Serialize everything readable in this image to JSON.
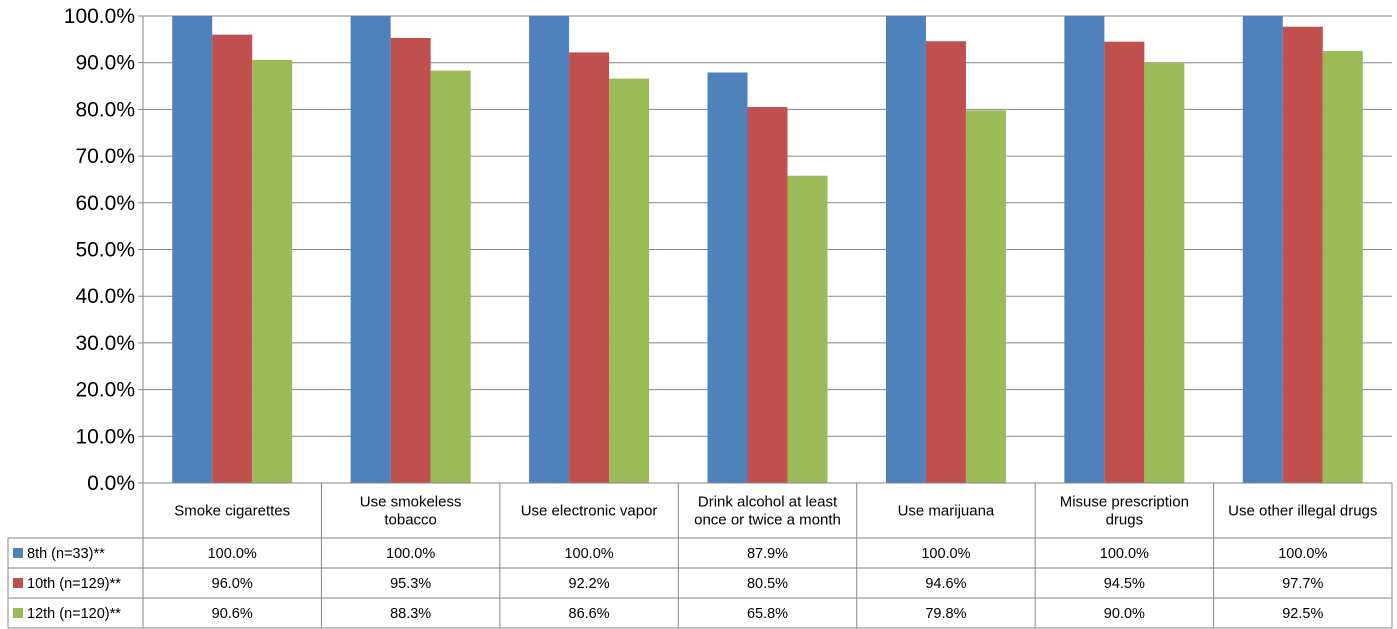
{
  "chart_data": {
    "type": "bar",
    "title": "",
    "xlabel": "",
    "ylabel": "",
    "ylim": [
      0,
      100
    ],
    "ytick_step": 10,
    "grid": true,
    "legend": "table-left",
    "categories": [
      [
        "Smoke cigarettes"
      ],
      [
        "Use smokeless",
        "tobacco"
      ],
      [
        "Use electronic vapor"
      ],
      [
        "Drink alcohol at least",
        "once or twice a month"
      ],
      [
        "Use marijuana"
      ],
      [
        "Misuse prescription",
        "drugs"
      ],
      [
        "Use other illegal drugs"
      ]
    ],
    "series": [
      {
        "name": "8th (n=33)**",
        "color": "#4f81bd",
        "values": [
          100.0,
          100.0,
          100.0,
          87.9,
          100.0,
          100.0,
          100.0
        ],
        "labels": [
          "100.0%",
          "100.0%",
          "100.0%",
          "87.9%",
          "100.0%",
          "100.0%",
          "100.0%"
        ]
      },
      {
        "name": "10th (n=129)**",
        "color": "#c0504d",
        "values": [
          96.0,
          95.3,
          92.2,
          80.5,
          94.6,
          94.5,
          97.7
        ],
        "labels": [
          "96.0%",
          "95.3%",
          "92.2%",
          "80.5%",
          "94.6%",
          "94.5%",
          "97.7%"
        ]
      },
      {
        "name": "12th (n=120)**",
        "color": "#9bbb59",
        "values": [
          90.6,
          88.3,
          86.6,
          65.8,
          79.8,
          90.0,
          92.5
        ],
        "labels": [
          "90.6%",
          "88.3%",
          "86.6%",
          "65.8%",
          "79.8%",
          "90.0%",
          "92.5%"
        ]
      }
    ]
  }
}
